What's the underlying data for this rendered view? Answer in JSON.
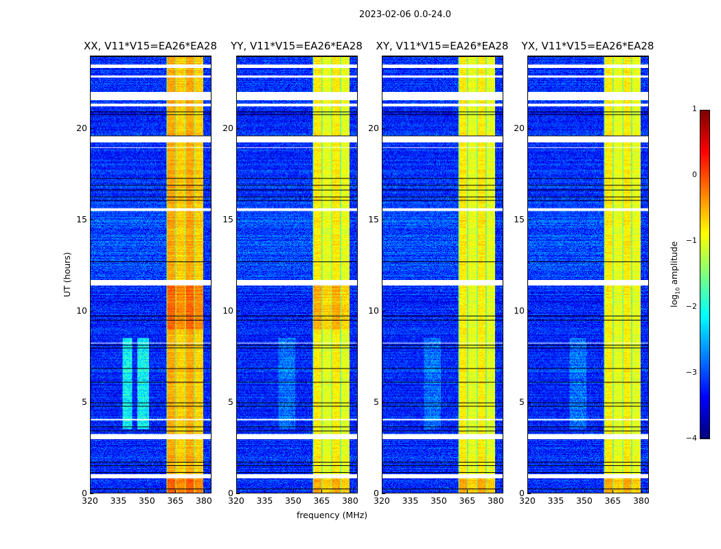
{
  "figure_title": "2023-02-06 0.0-24.0",
  "chart_data": {
    "type": "heatmap",
    "suptitle": "2023-02-06 0.0-24.0",
    "panels": [
      {
        "title": "XX, V11*V15=EA26*EA28",
        "pol": "XX"
      },
      {
        "title": "YY, V11*V15=EA26*EA28",
        "pol": "YY"
      },
      {
        "title": "XY, V11*V15=EA26*EA28",
        "pol": "XY"
      },
      {
        "title": "YX, V11*V15=EA26*EA28",
        "pol": "YX"
      }
    ],
    "xlabel": "frequency (MHz)",
    "ylabel": "UT (hours)",
    "xlim": [
      320,
      384
    ],
    "ylim": [
      0,
      24
    ],
    "xticks": [
      "320",
      "335",
      "350",
      "365",
      "380"
    ],
    "xtick_values": [
      320,
      335,
      350,
      365,
      380
    ],
    "yticks": [
      "0",
      "5",
      "10",
      "15",
      "20"
    ],
    "ytick_values": [
      0,
      5,
      10,
      15,
      20
    ],
    "colorbar": {
      "label": "log10 amplitude",
      "label_main": "log",
      "label_sub": "10",
      "label_rest": " amplitude",
      "colormap": "jet",
      "range": [
        -4,
        1
      ],
      "ticks": [
        "1",
        "0",
        "−1",
        "−2",
        "−3",
        "−4"
      ],
      "tick_values": [
        1,
        0,
        -1,
        -2,
        -3,
        -4
      ]
    },
    "background_level": -3.2,
    "rfi_band_mhz": [
      360.5,
      380
    ],
    "rfi_band_level": -0.8,
    "flagged_hours": [
      [
        23.35,
        23.55
      ],
      [
        22.85,
        22.95
      ],
      [
        21.6,
        22.05
      ],
      [
        21.25,
        21.4
      ],
      [
        19.25,
        19.6
      ],
      [
        18.95,
        19.0
      ],
      [
        15.5,
        15.65
      ],
      [
        11.4,
        11.7
      ],
      [
        8.2,
        8.25
      ],
      [
        4.0,
        4.05
      ],
      [
        2.95,
        3.25
      ],
      [
        0.8,
        1.0
      ]
    ]
  }
}
